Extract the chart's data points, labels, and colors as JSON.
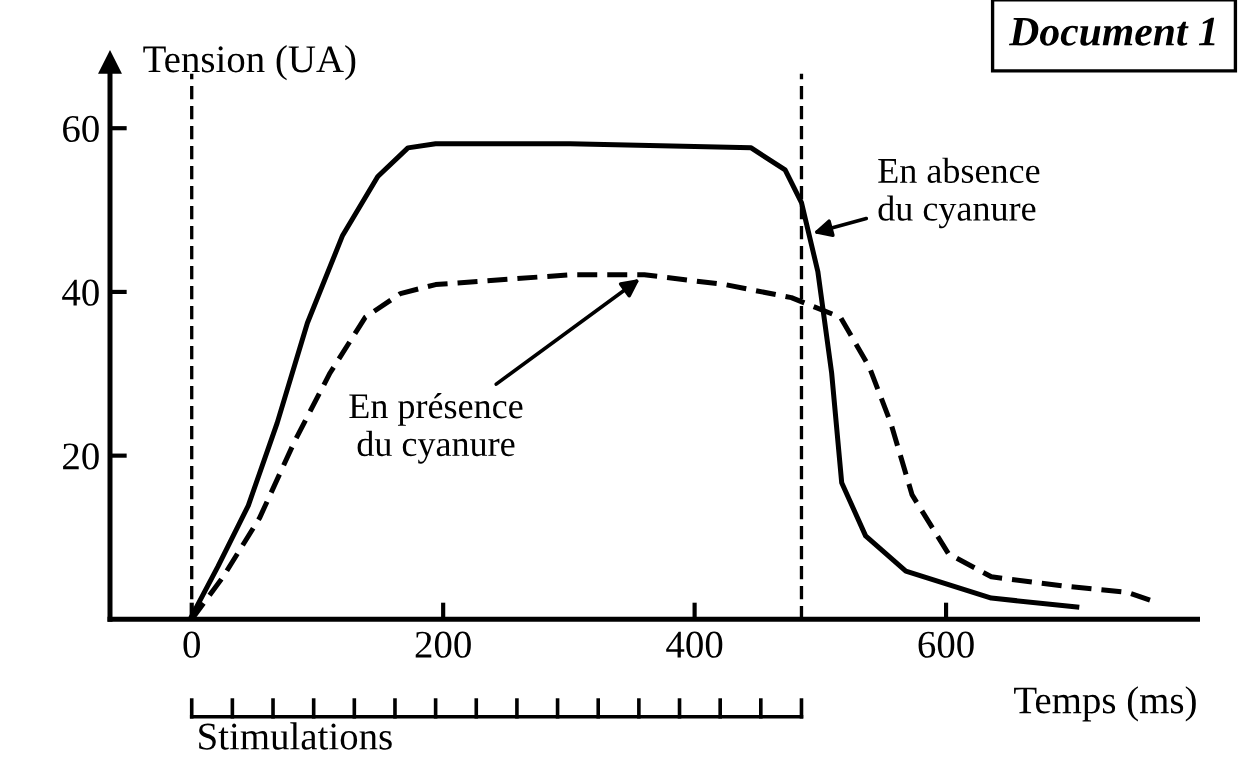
{
  "chart_data": {
    "type": "line",
    "title": "Document 1",
    "ylabel": "Tension (UA)",
    "xlabel": "Temps (ms)",
    "xlim": [
      -65,
      800
    ],
    "ylim": [
      0,
      68
    ],
    "xticks": [
      0,
      200,
      400,
      600
    ],
    "yticks": [
      20,
      40,
      60
    ],
    "grid": false,
    "legend": false,
    "marker": "none",
    "series": [
      {
        "color": "#000000",
        "line_style": "solid",
        "x": [
          0,
          21,
          45,
          68,
          92,
          120,
          148,
          172,
          194,
          301,
          445,
          472,
          485,
          498,
          509,
          517,
          536,
          568,
          636,
          704
        ],
        "values": [
          0.4,
          6.5,
          13.9,
          24,
          36.2,
          46.9,
          54.1,
          57.6,
          58.1,
          58.1,
          57.6,
          54.9,
          50.9,
          42.5,
          30.1,
          16.7,
          10.2,
          5.9,
          2.6,
          1.5
        ]
      },
      {
        "color": "#000000",
        "line_style": "dashed",
        "x": [
          0,
          25,
          54,
          82,
          110,
          138,
          166,
          194,
          301,
          360,
          424,
          477,
          516,
          539,
          556,
          573,
          602,
          636,
          692,
          744,
          765
        ],
        "values": [
          0,
          5.2,
          12.4,
          21.8,
          30.1,
          36.9,
          39.8,
          40.9,
          42.1,
          42.1,
          40.9,
          39.3,
          36.9,
          30.8,
          24.0,
          15.2,
          8.0,
          5.2,
          4.1,
          3.3,
          2.2
        ]
      }
    ],
    "ref_lines": [
      {
        "axis": "x",
        "value": 0,
        "line_style": "dashed",
        "color": "#000000"
      },
      {
        "axis": "x",
        "value": 485,
        "line_style": "dashed",
        "color": "#000000"
      }
    ],
    "annotations": [
      {
        "text": "En présence\ndu cyanure",
        "x": 360,
        "y": 42
      },
      {
        "text": "En absence\ndu cyanure",
        "x": 490,
        "y": 47
      },
      "Stimulations"
    ]
  }
}
